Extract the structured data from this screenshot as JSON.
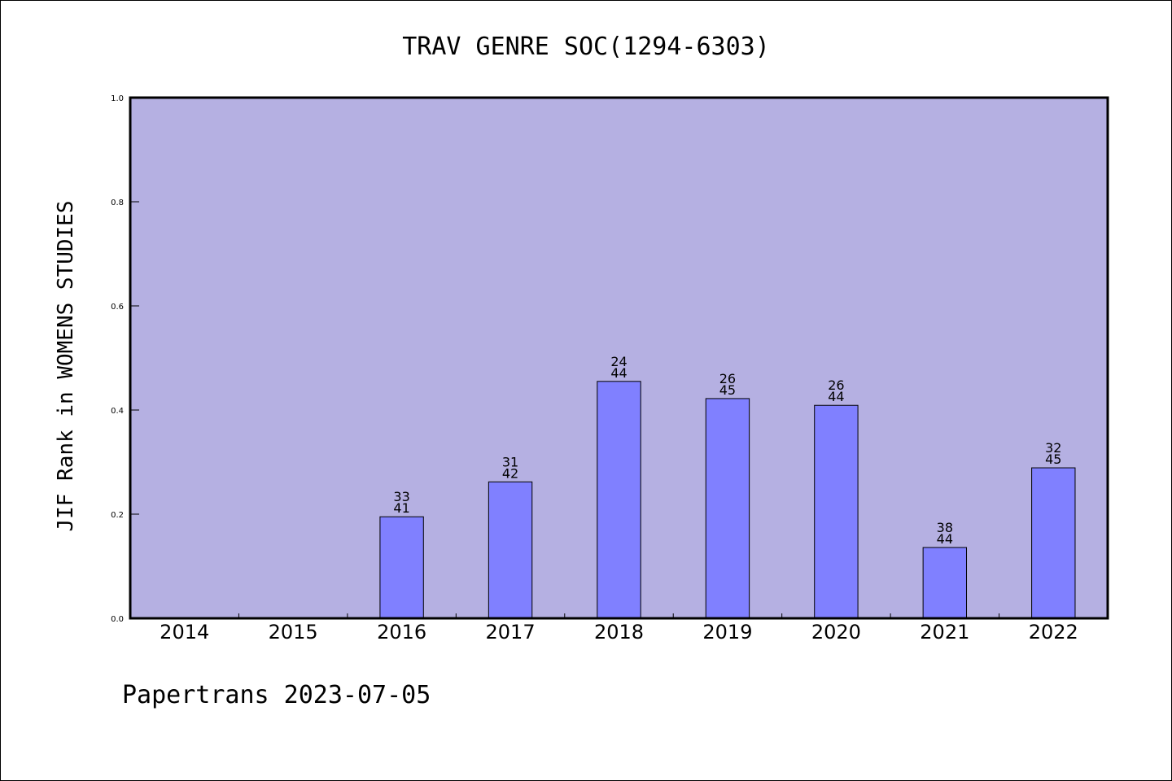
{
  "chart_data": {
    "type": "bar",
    "title": "TRAV GENRE SOC(1294-6303)",
    "xlabel": "",
    "ylabel": "JIF Rank in WOMENS STUDIES",
    "ylim": [
      0,
      1.0
    ],
    "yticks": [
      "0.0",
      "0.2",
      "0.4",
      "0.6",
      "0.8",
      "1.0"
    ],
    "categories": [
      "2014",
      "2015",
      "2016",
      "2017",
      "2018",
      "2019",
      "2020",
      "2021",
      "2022"
    ],
    "values": [
      null,
      null,
      0.195,
      0.262,
      0.455,
      0.422,
      0.409,
      0.136,
      0.289
    ],
    "bar_labels": [
      null,
      null,
      {
        "rank": "33",
        "total": "41"
      },
      {
        "rank": "31",
        "total": "42"
      },
      {
        "rank": "24",
        "total": "44"
      },
      {
        "rank": "26",
        "total": "45"
      },
      {
        "rank": "26",
        "total": "44"
      },
      {
        "rank": "38",
        "total": "44"
      },
      {
        "rank": "32",
        "total": "45"
      }
    ],
    "grid": false,
    "colors": {
      "plot_background": "#b5b0e2",
      "bar_fill": "#8080ff",
      "bar_stroke": "#000000"
    }
  },
  "footer": {
    "text": "Papertrans 2023-07-05"
  }
}
